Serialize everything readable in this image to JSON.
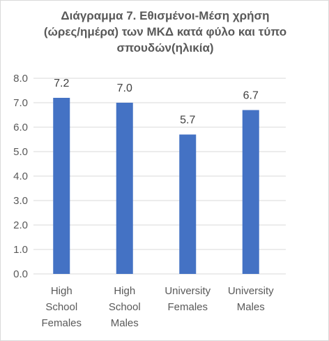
{
  "chart_data": {
    "type": "bar",
    "title_lines": [
      "Διάγραμμα 7. Εθισμένοι-Μέση χρήση",
      "(ώρες/ημέρα) των ΜΚΔ κατά φύλο και τύπο",
      "σπουδών(ηλικία)"
    ],
    "categories": [
      [
        "High",
        "School",
        "Females"
      ],
      [
        "High",
        "School",
        "Males"
      ],
      [
        "University",
        "Females"
      ],
      [
        "University",
        "Males"
      ]
    ],
    "values": [
      7.2,
      7.0,
      5.7,
      6.7
    ],
    "data_labels": [
      "7.2",
      "7.0",
      "5.7",
      "6.7"
    ],
    "y_ticks": [
      "0.0",
      "1.0",
      "2.0",
      "3.0",
      "4.0",
      "5.0",
      "6.0",
      "7.0",
      "8.0"
    ],
    "ylim": [
      0,
      8
    ],
    "grid": true,
    "legend": "none",
    "colors": {
      "bar": "#4472C4",
      "grid": "#d9d9d9",
      "text": "#595959"
    }
  }
}
